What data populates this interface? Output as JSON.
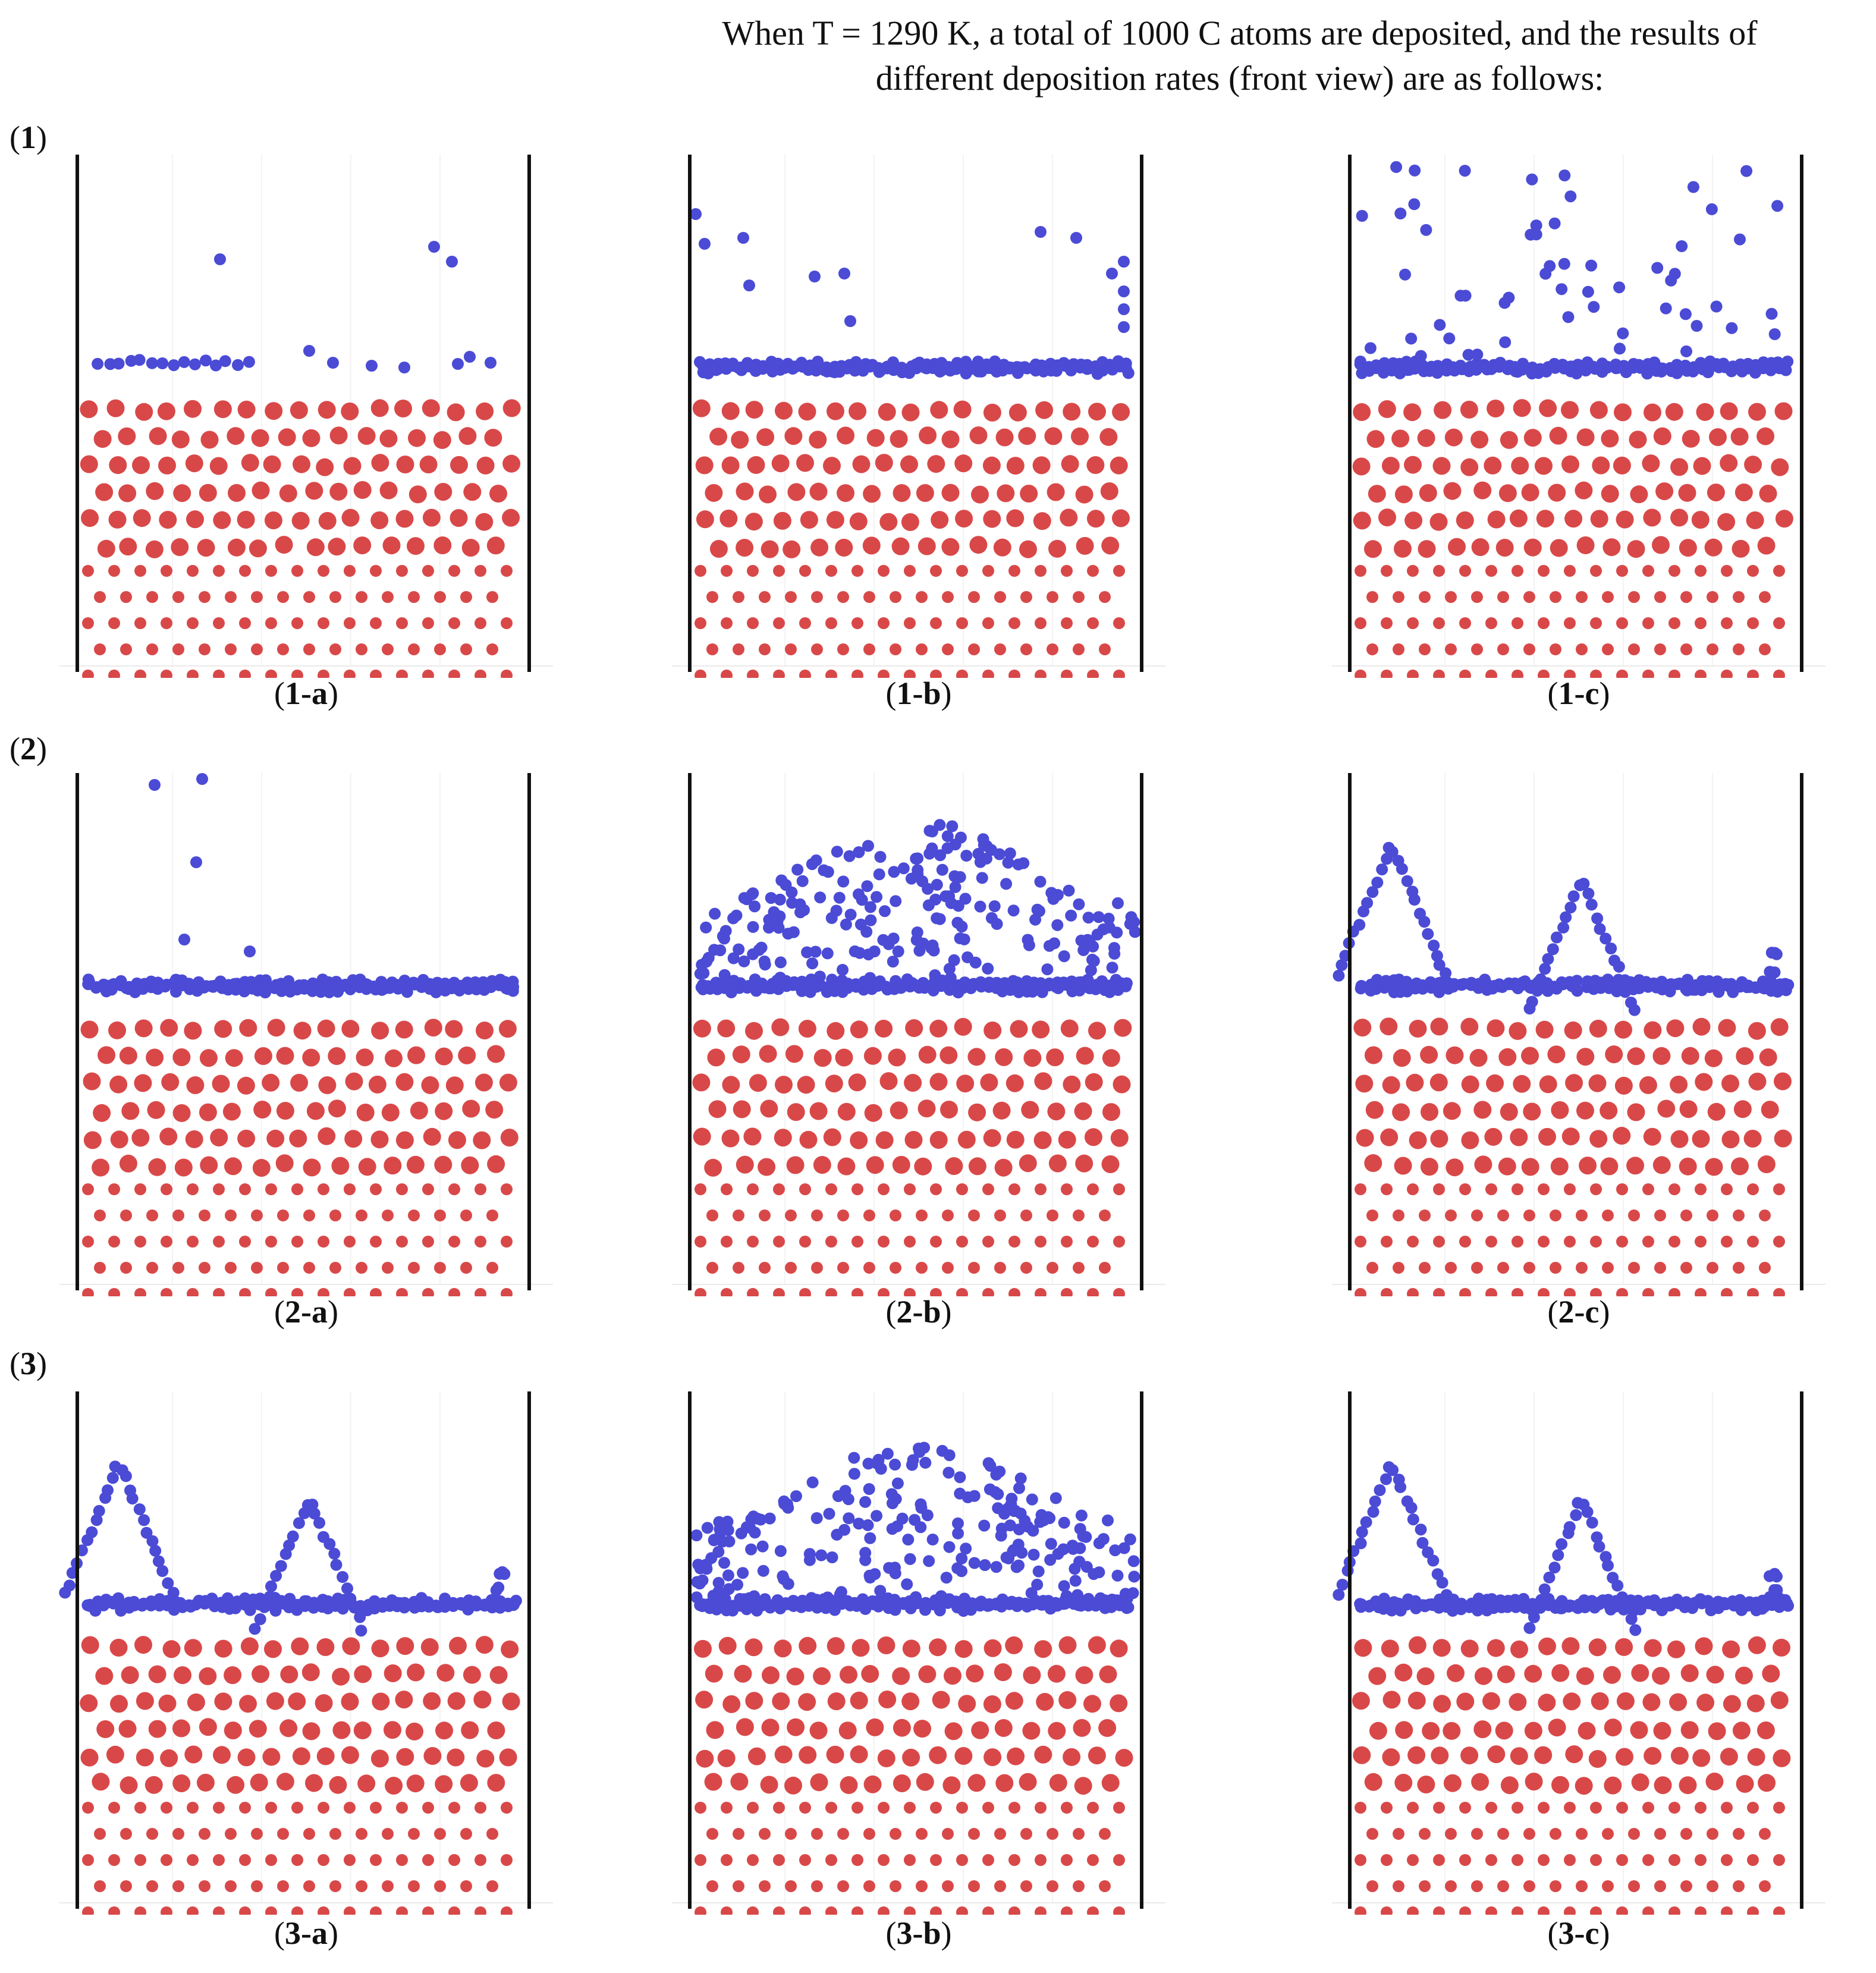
{
  "header": {
    "title_line1": "When T = 1290 K, a total of 1000 C atoms are deposited, and the results of",
    "title_line2": "different deposition rates (front view) are as follows:"
  },
  "rows": [
    {
      "label_num": "1"
    },
    {
      "label_num": "2"
    },
    {
      "label_num": "3"
    }
  ],
  "panels": [
    {
      "id": "1-a",
      "num": "1",
      "letter": "a",
      "caption_dash": "-"
    },
    {
      "id": "1-b",
      "num": "1",
      "letter": "b",
      "caption_dash": "-"
    },
    {
      "id": "1-c",
      "num": "1",
      "letter": "c",
      "caption_dash": "-"
    },
    {
      "id": "2-a",
      "num": "2",
      "letter": "a",
      "caption_dash": "-"
    },
    {
      "id": "2-b",
      "num": "2",
      "letter": "b",
      "caption_dash": "-"
    },
    {
      "id": "2-c",
      "num": "2",
      "letter": "c",
      "caption_dash": "-"
    },
    {
      "id": "3-a",
      "num": "3",
      "letter": "a",
      "caption_dash": "-"
    },
    {
      "id": "3-b",
      "num": "3",
      "letter": "b",
      "caption_dash": "-"
    },
    {
      "id": "3-c",
      "num": "3",
      "letter": "c",
      "caption_dash": "-"
    }
  ],
  "colors": {
    "substrate_atom": "#d94848",
    "carbon_atom": "#4b4bd6",
    "wall": "#111111"
  }
}
